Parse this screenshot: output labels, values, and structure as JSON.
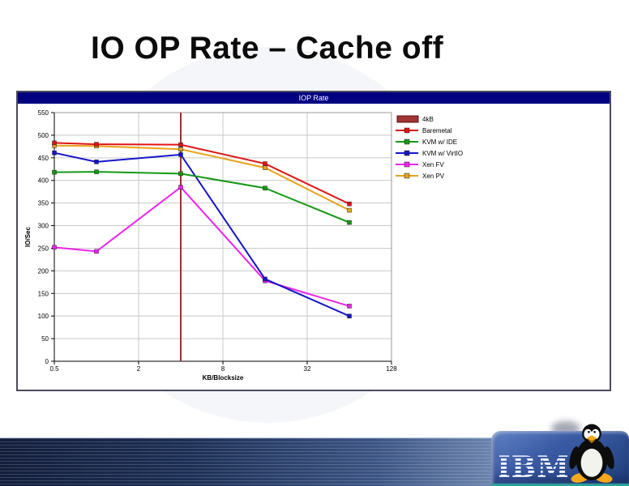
{
  "slide": {
    "title": "IO OP Rate – Cache off"
  },
  "chart": {
    "window_title": "IOP Rate"
  },
  "chart_data": {
    "type": "line",
    "title": "IOP Rate",
    "xlabel": "KB/Blocksize",
    "ylabel": "IO/Sec",
    "x_scale": "log2",
    "xlim": [
      0.5,
      128
    ],
    "ylim": [
      0,
      550
    ],
    "xticks": [
      0.5,
      2,
      8,
      32,
      128
    ],
    "yticks": [
      0,
      50,
      100,
      150,
      200,
      250,
      300,
      350,
      400,
      450,
      500,
      550
    ],
    "grid": true,
    "x": [
      0.5,
      1,
      4,
      16,
      64
    ],
    "series": [
      {
        "name": "Baremetal",
        "color": "#e01414",
        "values": [
          483,
          480,
          479,
          437,
          348
        ]
      },
      {
        "name": "KVM w/ IDE",
        "color": "#149914",
        "values": [
          418,
          419,
          415,
          383,
          307
        ]
      },
      {
        "name": "KVM w/ VirtIO",
        "color": "#1414cc",
        "values": [
          461,
          441,
          457,
          182,
          100
        ]
      },
      {
        "name": "Xen FV",
        "color": "#ee22ee",
        "values": [
          252,
          243,
          385,
          178,
          122
        ]
      },
      {
        "name": "Xen PV",
        "color": "#e8a21a",
        "values": [
          477,
          476,
          469,
          428,
          334
        ]
      }
    ],
    "reference_line": {
      "x": 4,
      "label": "4kB",
      "color": "#993333"
    },
    "legend": {
      "position": "right",
      "entries": [
        {
          "label": "4kB",
          "color": "#a03434",
          "swatch": "box"
        },
        {
          "label": "Baremetal",
          "color": "#e01414",
          "swatch": "line"
        },
        {
          "label": "KVM w/ IDE",
          "color": "#149914",
          "swatch": "line"
        },
        {
          "label": "KVM w/ VirtIO",
          "color": "#1414cc",
          "swatch": "line"
        },
        {
          "label": "Xen FV",
          "color": "#ee22ee",
          "swatch": "line"
        },
        {
          "label": "Xen PV",
          "color": "#e8a21a",
          "swatch": "line"
        }
      ]
    }
  },
  "footer": {
    "ibm_logo_text": "IBM",
    "mascot": "tux-penguin-icon",
    "band_colors": {
      "left": "#131e3c",
      "right": "#aabdd9",
      "badge": "#3a5aa4",
      "teal": "#2aa198"
    }
  }
}
